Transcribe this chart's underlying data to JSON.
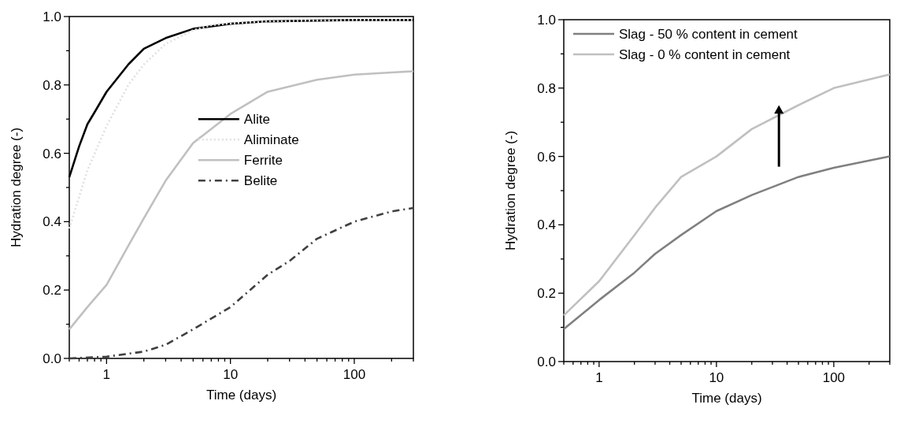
{
  "chart_data": [
    {
      "type": "line",
      "xlabel": "Time (days)",
      "ylabel": "Hydration degree (-)",
      "log": "x",
      "legend": "right",
      "xlim": [
        0.5,
        300
      ],
      "ylim": [
        0,
        1
      ],
      "xticks": [
        {
          "value": 0.5,
          "label": null
        },
        {
          "value": 0.6,
          "label": null
        },
        {
          "value": 0.7,
          "label": null
        },
        {
          "value": 0.8,
          "label": null
        },
        {
          "value": 0.9,
          "label": null
        },
        1,
        {
          "value": 2,
          "label": null
        },
        {
          "value": 3,
          "label": null
        },
        {
          "value": 4,
          "label": null
        },
        {
          "value": 5,
          "label": null
        },
        {
          "value": 6,
          "label": null
        },
        {
          "value": 7,
          "label": null
        },
        {
          "value": 8,
          "label": null
        },
        {
          "value": 9,
          "label": null
        },
        10,
        {
          "value": 20,
          "label": null
        },
        {
          "value": 30,
          "label": null
        },
        {
          "value": 40,
          "label": null
        },
        {
          "value": 50,
          "label": null
        },
        {
          "value": 60,
          "label": null
        },
        {
          "value": 70,
          "label": null
        },
        {
          "value": 80,
          "label": null
        },
        {
          "value": 90,
          "label": null
        },
        100,
        {
          "value": 200,
          "label": null
        },
        {
          "value": 300,
          "label": null
        }
      ],
      "yticks": [
        {
          "value": 0,
          "label": "0.0"
        },
        {
          "value": 0.1,
          "label": null
        },
        0.2,
        {
          "value": 0.3,
          "label": null
        },
        0.4,
        {
          "value": 0.5,
          "label": null
        },
        0.6,
        {
          "value": 0.7,
          "label": null
        },
        0.8,
        {
          "value": 0.9,
          "label": null
        },
        {
          "value": 1,
          "label": "1.0"
        }
      ],
      "series": [
        {
          "name": "Alite",
          "color": "#000000",
          "line_style": "solid",
          "x": [
            0.5,
            0.6,
            0.7,
            0.8,
            1,
            1.5,
            2,
            3,
            5,
            10,
            20,
            100,
            300
          ],
          "values": [
            0.53,
            0.62,
            0.685,
            0.72,
            0.78,
            0.86,
            0.906,
            0.937,
            0.964,
            0.979,
            0.986,
            0.99,
            0.99
          ]
        },
        {
          "name": "Aliminate",
          "color": "#e0e0e0",
          "line_style": "dotted",
          "x": [
            0.5,
            0.7,
            1,
            1.5,
            2,
            3,
            5,
            7,
            10,
            20,
            100,
            300
          ],
          "values": [
            0.38,
            0.55,
            0.68,
            0.8,
            0.86,
            0.92,
            0.96,
            0.975,
            0.98,
            0.986,
            0.99,
            0.99
          ]
        },
        {
          "name": "Ferrite",
          "color": "#c0c0c0",
          "line_style": "solid",
          "x": [
            0.5,
            0.7,
            1,
            1.5,
            2,
            3,
            5,
            10,
            20,
            50,
            100,
            300
          ],
          "values": [
            0.085,
            0.15,
            0.215,
            0.33,
            0.41,
            0.52,
            0.63,
            0.715,
            0.78,
            0.815,
            0.83,
            0.84
          ]
        },
        {
          "name": "Belite",
          "color": "#404040",
          "line_style": "dashed",
          "x": [
            0.5,
            1,
            2,
            3,
            5,
            10,
            20,
            30,
            50,
            100,
            200,
            300
          ],
          "values": [
            0,
            0.005,
            0.02,
            0.04,
            0.085,
            0.15,
            0.245,
            0.285,
            0.35,
            0.4,
            0.43,
            0.44
          ]
        }
      ]
    },
    {
      "type": "line",
      "xlabel": "Time (days)",
      "ylabel": "Hydration degree (-)",
      "log": "x",
      "legend": "top left",
      "xlim": [
        0.5,
        300
      ],
      "ylim": [
        0,
        1
      ],
      "xticks": [
        {
          "value": 0.5,
          "label": null
        },
        {
          "value": 0.6,
          "label": null
        },
        {
          "value": 0.7,
          "label": null
        },
        {
          "value": 0.8,
          "label": null
        },
        {
          "value": 0.9,
          "label": null
        },
        1,
        {
          "value": 2,
          "label": null
        },
        {
          "value": 3,
          "label": null
        },
        {
          "value": 4,
          "label": null
        },
        {
          "value": 5,
          "label": null
        },
        {
          "value": 6,
          "label": null
        },
        {
          "value": 7,
          "label": null
        },
        {
          "value": 8,
          "label": null
        },
        {
          "value": 9,
          "label": null
        },
        10,
        {
          "value": 20,
          "label": null
        },
        {
          "value": 30,
          "label": null
        },
        {
          "value": 40,
          "label": null
        },
        {
          "value": 50,
          "label": null
        },
        {
          "value": 60,
          "label": null
        },
        {
          "value": 70,
          "label": null
        },
        {
          "value": 80,
          "label": null
        },
        {
          "value": 90,
          "label": null
        },
        100,
        {
          "value": 200,
          "label": null
        },
        {
          "value": 300,
          "label": null
        }
      ],
      "yticks": [
        {
          "value": 0,
          "label": "0.0"
        },
        {
          "value": 0.1,
          "label": null
        },
        0.2,
        {
          "value": 0.3,
          "label": null
        },
        0.4,
        {
          "value": 0.5,
          "label": null
        },
        0.6,
        {
          "value": 0.7,
          "label": null
        },
        0.8,
        {
          "value": 0.9,
          "label": null
        },
        {
          "value": 1,
          "label": "1.0"
        }
      ],
      "series": [
        {
          "name": "Slag - 50 % content in cement",
          "color": "#808080",
          "line_style": "solid",
          "x": [
            0.5,
            1,
            2,
            3,
            5,
            10,
            20,
            50,
            100,
            300
          ],
          "values": [
            0.095,
            0.18,
            0.26,
            0.315,
            0.37,
            0.44,
            0.487,
            0.54,
            0.567,
            0.6
          ]
        },
        {
          "name": "Slag - 0 % content in cement",
          "color": "#c0c0c0",
          "line_style": "solid",
          "x": [
            0.5,
            1,
            2,
            3,
            5,
            10,
            20,
            50,
            100,
            300
          ],
          "values": [
            0.135,
            0.235,
            0.37,
            0.45,
            0.54,
            0.6,
            0.68,
            0.75,
            0.8,
            0.84
          ]
        }
      ]
    }
  ]
}
